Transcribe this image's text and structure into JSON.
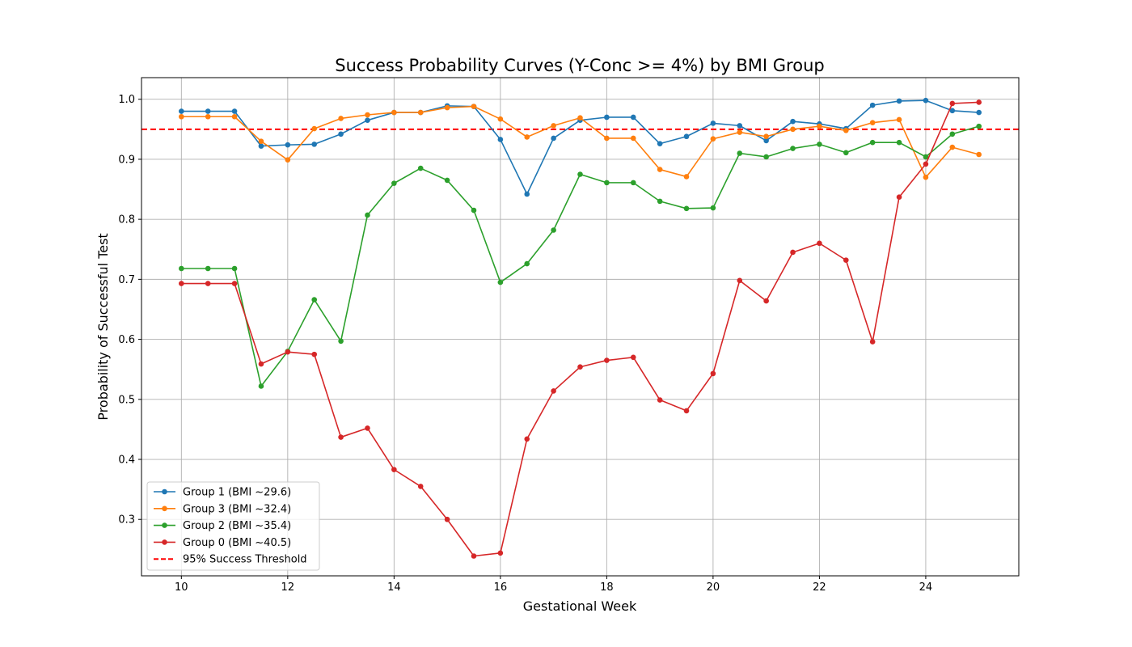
{
  "chart_data": {
    "type": "line",
    "title": "Success Probability Curves (Y-Conc >= 4%) by BMI Group",
    "xlabel": "Gestational Week",
    "ylabel": "Probability of Successful Test",
    "xlim": [
      9.25,
      25.75
    ],
    "ylim": [
      0.206,
      1.036
    ],
    "xticks": [
      "10",
      "12",
      "14",
      "16",
      "18",
      "20",
      "22",
      "24"
    ],
    "xtick_values": [
      10,
      12,
      14,
      16,
      18,
      20,
      22,
      24
    ],
    "yticks": [
      "0.3",
      "0.4",
      "0.5",
      "0.6",
      "0.7",
      "0.8",
      "0.9",
      "1.0"
    ],
    "ytick_values": [
      0.3,
      0.4,
      0.5,
      0.6,
      0.7,
      0.8,
      0.9,
      1.0
    ],
    "grid": true,
    "legend_position": "lower-left",
    "x": [
      10,
      10.5,
      11,
      11.5,
      12,
      12.5,
      13,
      13.5,
      14,
      14.5,
      15,
      15.5,
      16,
      16.5,
      17,
      17.5,
      18,
      18.5,
      19,
      19.5,
      20,
      20.5,
      21,
      21.5,
      22,
      22.5,
      23,
      23.5,
      24,
      24.5,
      25
    ],
    "series": [
      {
        "name": "Group 1 (BMI ~29.6)",
        "color": "#1f77b4",
        "values": [
          0.98,
          0.98,
          0.98,
          0.922,
          0.924,
          0.925,
          0.942,
          0.965,
          0.978,
          0.978,
          0.989,
          0.988,
          0.933,
          0.842,
          0.935,
          0.965,
          0.97,
          0.97,
          0.926,
          0.938,
          0.96,
          0.956,
          0.931,
          0.963,
          0.959,
          0.951,
          0.99,
          0.997,
          0.998,
          0.981,
          0.978
        ]
      },
      {
        "name": "Group 3 (BMI ~32.4)",
        "color": "#ff7f0e",
        "values": [
          0.971,
          0.971,
          0.971,
          0.93,
          0.899,
          0.951,
          0.968,
          0.974,
          0.978,
          0.978,
          0.986,
          0.988,
          0.967,
          0.937,
          0.956,
          0.969,
          0.935,
          0.935,
          0.883,
          0.871,
          0.934,
          0.945,
          0.938,
          0.95,
          0.955,
          0.948,
          0.961,
          0.966,
          0.87,
          0.92,
          0.908
        ]
      },
      {
        "name": "Group 2 (BMI ~35.4)",
        "color": "#2ca02c",
        "values": [
          0.718,
          0.718,
          0.718,
          0.522,
          0.58,
          0.666,
          0.597,
          0.807,
          0.86,
          0.885,
          0.865,
          0.815,
          0.695,
          0.726,
          0.782,
          0.875,
          0.861,
          0.861,
          0.83,
          0.818,
          0.819,
          0.91,
          0.904,
          0.918,
          0.925,
          0.911,
          0.928,
          0.928,
          0.904,
          0.942,
          0.955
        ]
      },
      {
        "name": "Group 0 (BMI ~40.5)",
        "color": "#d62728",
        "values": [
          0.693,
          0.693,
          0.693,
          0.559,
          0.579,
          0.575,
          0.437,
          0.452,
          0.383,
          0.355,
          0.3,
          0.239,
          0.244,
          0.434,
          0.514,
          0.554,
          0.565,
          0.57,
          0.499,
          0.481,
          0.543,
          0.698,
          0.664,
          0.745,
          0.76,
          0.732,
          0.596,
          0.837,
          0.892,
          0.993,
          0.995
        ]
      }
    ],
    "threshold": {
      "name": "95% Success Threshold",
      "value": 0.95,
      "color": "#ff0000",
      "style": "dashed"
    }
  }
}
